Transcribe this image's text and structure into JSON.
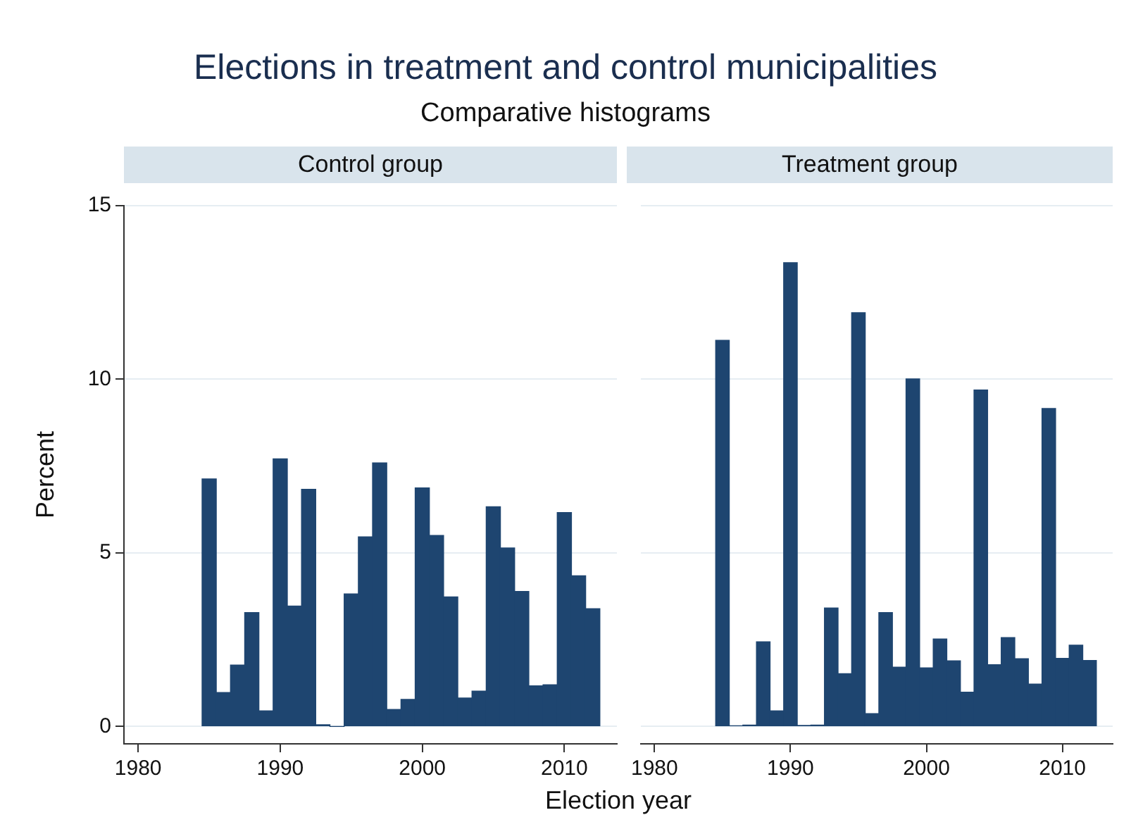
{
  "chart_data": [
    {
      "type": "other",
      "title": "Elections in treatment and control municipalities",
      "subtitle": "Comparative histograms",
      "xlabel": "Election year"
    },
    {
      "type": "histogram",
      "title": "Control group",
      "ylabel": "Percent",
      "color": "#1e4570",
      "bins": [
        1984.5,
        1985.5,
        1986.5,
        1987.5,
        1988.5,
        1989.5,
        1990.5,
        1991.5,
        1992.5,
        1993.5,
        1994.5,
        1995.5,
        1996.5,
        1997.5,
        1998.5,
        1999.5,
        2000.5,
        2001.5,
        2002.5,
        2003.5,
        2004.5,
        2005.5,
        2006.5,
        2007.5,
        2008.5,
        2009.5,
        2010.5,
        2011.5,
        2012.5
      ],
      "values": [
        7.13,
        0.98,
        1.77,
        3.28,
        0.45,
        7.71,
        3.47,
        6.83,
        0.05,
        0,
        3.82,
        5.46,
        7.59,
        0.49,
        0.78,
        6.87,
        5.5,
        3.73,
        0.82,
        1.02,
        6.33,
        5.14,
        3.89,
        1.17,
        1.2,
        6.16,
        4.34,
        3.39
      ],
      "xlim": [
        1979,
        2013.7
      ],
      "xticks": [
        1980,
        1990,
        2000,
        2010
      ],
      "ylim": [
        -0.5,
        15
      ],
      "yticks": [
        0,
        5,
        10,
        15
      ],
      "grid": "y"
    },
    {
      "type": "histogram",
      "title": "Treatment group",
      "color": "#1e4570",
      "bins": [
        1984.5,
        1985.5,
        1986.5,
        1987.5,
        1988.5,
        1989.5,
        1990.5,
        1991.5,
        1992.5,
        1993.5,
        1994.5,
        1995.5,
        1996.5,
        1997.5,
        1998.5,
        1999.5,
        2000.5,
        2001.5,
        2002.5,
        2003.5,
        2004.5,
        2005.5,
        2006.5,
        2007.5,
        2008.5,
        2009.5,
        2010.5,
        2011.5,
        2012.5
      ],
      "values": [
        11.12,
        0.02,
        0.04,
        2.44,
        0.45,
        13.36,
        0.03,
        0.04,
        3.41,
        1.52,
        11.92,
        0.37,
        3.28,
        1.71,
        10.01,
        1.69,
        2.52,
        1.89,
        0.99,
        9.69,
        1.78,
        2.56,
        1.95,
        1.22,
        9.16,
        1.96,
        2.34,
        1.9
      ],
      "xlim": [
        1979,
        2013.7
      ],
      "xticks": [
        1980,
        1990,
        2000,
        2010
      ],
      "ylim": [
        -0.5,
        15
      ],
      "yticks": [
        0,
        5,
        10,
        15
      ],
      "grid": "y",
      "tick_labels": "x"
    }
  ]
}
